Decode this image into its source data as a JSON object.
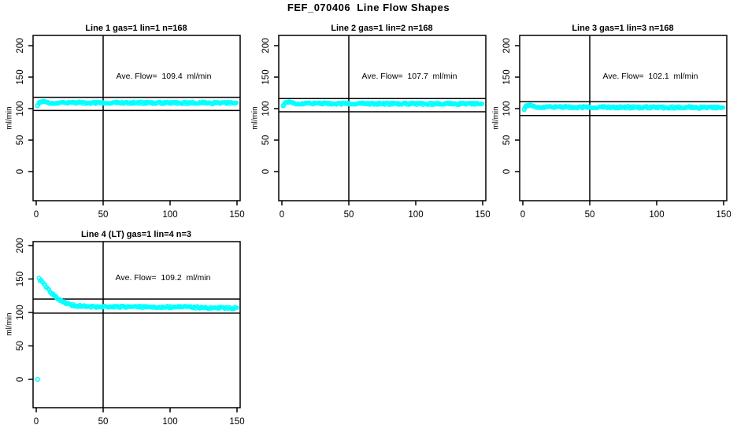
{
  "page": {
    "main_title": "FEF_070406  Line Flow Shapes"
  },
  "chart_data": {
    "type": "scatter",
    "point_style": "open-circle",
    "point_color": "#00ffff",
    "axis_color": "#000000",
    "background": "#ffffff",
    "ylabel": "ml/min",
    "xlabel": "",
    "x_ticks": [
      0,
      50,
      100,
      150
    ],
    "y_ticks": [
      0,
      50,
      100,
      150,
      200
    ],
    "xlim": [
      0,
      150
    ],
    "ylim": [
      0,
      200
    ],
    "grid": false,
    "legend": "none",
    "panels": [
      {
        "id": "line1",
        "title": "Line 1 gas=1 lin=1 n=168",
        "n": 168,
        "ave_flow_ml_min": 109.4,
        "annotation": "Ave. Flow=  109.4  ml/min",
        "vline_x": 50,
        "upper_ref_line": 118,
        "lower_ref_line": 97,
        "profile": [
          [
            1,
            106
          ],
          [
            2,
            110.5
          ],
          [
            4,
            111
          ],
          [
            7,
            110
          ],
          [
            12,
            109.5
          ],
          [
            40,
            109.3
          ],
          [
            80,
            109.2
          ],
          [
            120,
            109
          ],
          [
            150,
            108.8
          ]
        ],
        "extra_points": [
          [
            1,
            104.5
          ]
        ]
      },
      {
        "id": "line2",
        "title": "Line 2 gas=1 lin=2 n=168",
        "n": 168,
        "ave_flow_ml_min": 107.7,
        "annotation": "Ave. Flow=  107.7  ml/min",
        "vline_x": 50,
        "upper_ref_line": 116,
        "lower_ref_line": 95,
        "profile": [
          [
            1,
            107
          ],
          [
            3,
            110.5
          ],
          [
            6,
            109.5
          ],
          [
            12,
            108.5
          ],
          [
            40,
            108
          ],
          [
            80,
            107.8
          ],
          [
            120,
            107.6
          ],
          [
            150,
            107.5
          ]
        ],
        "extra_points": [
          [
            1,
            104.5
          ]
        ]
      },
      {
        "id": "line3",
        "title": "Line 3 gas=1 lin=3 n=168",
        "n": 168,
        "ave_flow_ml_min": 102.1,
        "annotation": "Ave. Flow=  102.1  ml/min",
        "vline_x": 50,
        "upper_ref_line": 111,
        "lower_ref_line": 89,
        "profile": [
          [
            1,
            101
          ],
          [
            2,
            104.5
          ],
          [
            4,
            105
          ],
          [
            8,
            103.5
          ],
          [
            15,
            102.8
          ],
          [
            40,
            102.2
          ],
          [
            80,
            102
          ],
          [
            120,
            101.8
          ],
          [
            150,
            101.5
          ]
        ],
        "extra_points": [
          [
            1,
            98.5
          ]
        ]
      },
      {
        "id": "line4",
        "title": "Line 4 (LT) gas=1 lin=4 n=3",
        "n": 3,
        "ave_flow_ml_min": 109.2,
        "annotation": "Ave. Flow=  109.2  ml/min",
        "vline_x": 50,
        "upper_ref_line": 120,
        "lower_ref_line": 99,
        "profile": [
          [
            2,
            150
          ],
          [
            3,
            148.5
          ],
          [
            4,
            147
          ],
          [
            6,
            142
          ],
          [
            8,
            137
          ],
          [
            10,
            132
          ],
          [
            13,
            126
          ],
          [
            16,
            121
          ],
          [
            20,
            116
          ],
          [
            24,
            112.5
          ],
          [
            28,
            110.5
          ],
          [
            33,
            109.5
          ],
          [
            40,
            108.8
          ],
          [
            60,
            108.3
          ],
          [
            90,
            108.2
          ],
          [
            120,
            107.5
          ],
          [
            150,
            106.5
          ]
        ],
        "extra_points": [
          [
            1,
            0
          ]
        ]
      }
    ]
  }
}
